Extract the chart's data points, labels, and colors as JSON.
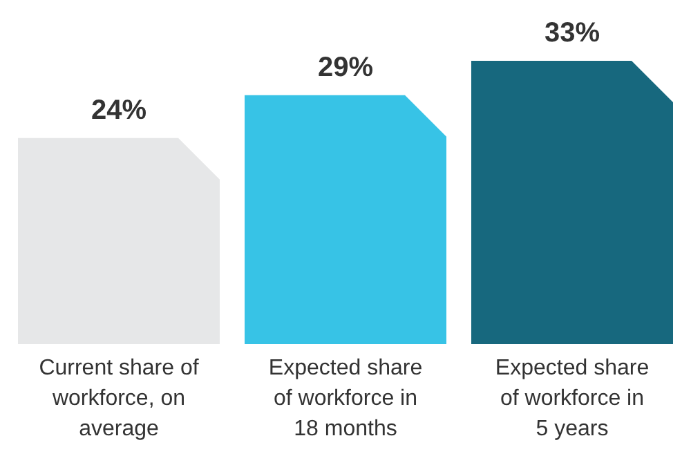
{
  "chart_data": {
    "type": "bar",
    "categories": [
      "Current share of workforce, on average",
      "Expected share of workforce in 18 months",
      "Expected share of workforce in 5 years"
    ],
    "values": [
      24,
      29,
      33
    ],
    "value_labels": [
      "24%",
      "29%",
      "33%"
    ],
    "colors": [
      "#e6e7e8",
      "#37c3e6",
      "#17687e"
    ]
  }
}
